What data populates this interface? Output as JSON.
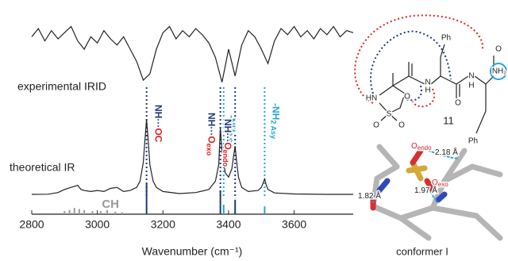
{
  "chart_data": {
    "type": "line",
    "xlabel": "Wavenumber (cm⁻¹)",
    "xlim": [
      2800,
      3780
    ],
    "xticks": [
      2800,
      3000,
      3200,
      3400,
      3600
    ],
    "ylim": [
      0,
      100
    ],
    "series": [
      {
        "name": "experimental IRID",
        "color": "#222222",
        "x": [
          2800,
          2820,
          2840,
          2860,
          2880,
          2900,
          2920,
          2940,
          2960,
          2980,
          3000,
          3020,
          3040,
          3060,
          3080,
          3100,
          3120,
          3140,
          3160,
          3180,
          3200,
          3220,
          3240,
          3260,
          3280,
          3300,
          3320,
          3340,
          3360,
          3380,
          3400,
          3420,
          3440,
          3460,
          3480,
          3500,
          3520,
          3540,
          3560,
          3580,
          3600,
          3620,
          3640,
          3660,
          3680,
          3700,
          3720,
          3740,
          3760,
          3780
        ],
        "values": [
          86,
          90,
          84,
          89,
          85,
          88,
          91,
          84,
          80,
          86,
          83,
          89,
          85,
          82,
          86,
          80,
          74,
          65,
          68,
          80,
          88,
          91,
          85,
          89,
          86,
          90,
          87,
          83,
          76,
          64,
          80,
          67,
          82,
          89,
          86,
          80,
          73,
          84,
          90,
          87,
          91,
          86,
          89,
          85,
          90,
          87,
          91,
          86,
          89,
          88
        ]
      },
      {
        "name": "theoretical IR",
        "color": "#222222",
        "x": [
          2800,
          2850,
          2880,
          2900,
          2920,
          2940,
          2950,
          2960,
          2980,
          3000,
          3020,
          3040,
          3060,
          3080,
          3100,
          3120,
          3130,
          3140,
          3145,
          3150,
          3155,
          3160,
          3170,
          3180,
          3200,
          3250,
          3300,
          3340,
          3360,
          3370,
          3375,
          3380,
          3390,
          3400,
          3410,
          3415,
          3420,
          3425,
          3430,
          3440,
          3460,
          3490,
          3500,
          3505,
          3510,
          3515,
          3520,
          3540,
          3600,
          3700,
          3780
        ],
        "values": [
          9.6,
          9.7,
          10.5,
          12,
          13,
          14,
          12,
          11.5,
          11,
          11.5,
          11,
          12.5,
          13,
          11,
          11.5,
          13,
          16,
          25,
          36,
          46,
          36,
          24,
          16,
          13,
          11,
          10,
          10.5,
          12,
          16,
          24,
          42,
          30,
          20,
          18,
          22,
          28,
          33,
          25,
          18,
          13,
          11,
          11.5,
          13,
          15,
          17,
          14,
          12,
          10.3,
          9.8,
          9.6,
          9.6
        ]
      }
    ],
    "sticks": [
      {
        "color": "#1f3a78",
        "x": [
          3150,
          3375,
          3420
        ],
        "values": [
          15,
          11.5,
          7
        ]
      },
      {
        "color": "#29a3d6",
        "x": [
          3385,
          3510
        ],
        "values": [
          4.6,
          3.8
        ]
      },
      {
        "color": "#999999",
        "x": [
          2900,
          2915,
          2930,
          2945,
          2960,
          2985,
          3010,
          3030,
          3055,
          3075
        ],
        "values": [
          1.5,
          2,
          3,
          2.5,
          2,
          1.5,
          1.5,
          2,
          1.2,
          1
        ]
      }
    ],
    "stick_label": {
      "text": "CH",
      "x": 3040,
      "color": "#9a9a9a"
    },
    "annotations": [
      {
        "x": 3150,
        "color": "#1f3a78",
        "segments": [
          {
            "text": "NH···",
            "color": "#1f3a78"
          },
          {
            "text": "OC",
            "color": "#e02020"
          }
        ]
      },
      {
        "x": 3375,
        "color": "#1f3a78",
        "segments": [
          {
            "text": "NH···",
            "color": "#1f3a78"
          },
          {
            "text": "O",
            "color": "#e02020"
          },
          {
            "text": "exo",
            "color": "#e02020",
            "sub": true
          }
        ]
      },
      {
        "x": 3385,
        "color": "#29a3d6",
        "segments": [
          {
            "text": "-NH",
            "color": "#29a3d6"
          },
          {
            "text": "2 Sy",
            "color": "#29a3d6",
            "sub": true
          }
        ]
      },
      {
        "x": 3420,
        "color": "#1f3a78",
        "segments": [
          {
            "text": "NH···",
            "color": "#1f3a78"
          },
          {
            "text": "O",
            "color": "#e02020"
          },
          {
            "text": "endo",
            "color": "#e02020",
            "sub": true
          }
        ]
      },
      {
        "x": 3510,
        "color": "#29a3d6",
        "segments": [
          {
            "text": "-NH",
            "color": "#29a3d6"
          },
          {
            "text": "2 Asy",
            "color": "#29a3d6",
            "sub": true
          }
        ]
      }
    ]
  },
  "molecule": {
    "labels": [
      "Ph",
      "O",
      "HN",
      "O",
      "S",
      "O",
      "O",
      "H",
      "N",
      "N",
      "H",
      "O",
      "NH₂",
      "Ph",
      "11"
    ]
  },
  "conformer": {
    "labels": [
      {
        "text": "O",
        "sub": "endo",
        "color": "#e02020"
      },
      {
        "text": "2.18 Å",
        "color": "#222222"
      },
      {
        "text": "O",
        "sub": "exo",
        "color": "#e02020"
      },
      {
        "text": "1.97 Å",
        "color": "#222222"
      },
      {
        "text": "1.82 Å",
        "color": "#222222"
      }
    ],
    "caption": "conformer I"
  }
}
